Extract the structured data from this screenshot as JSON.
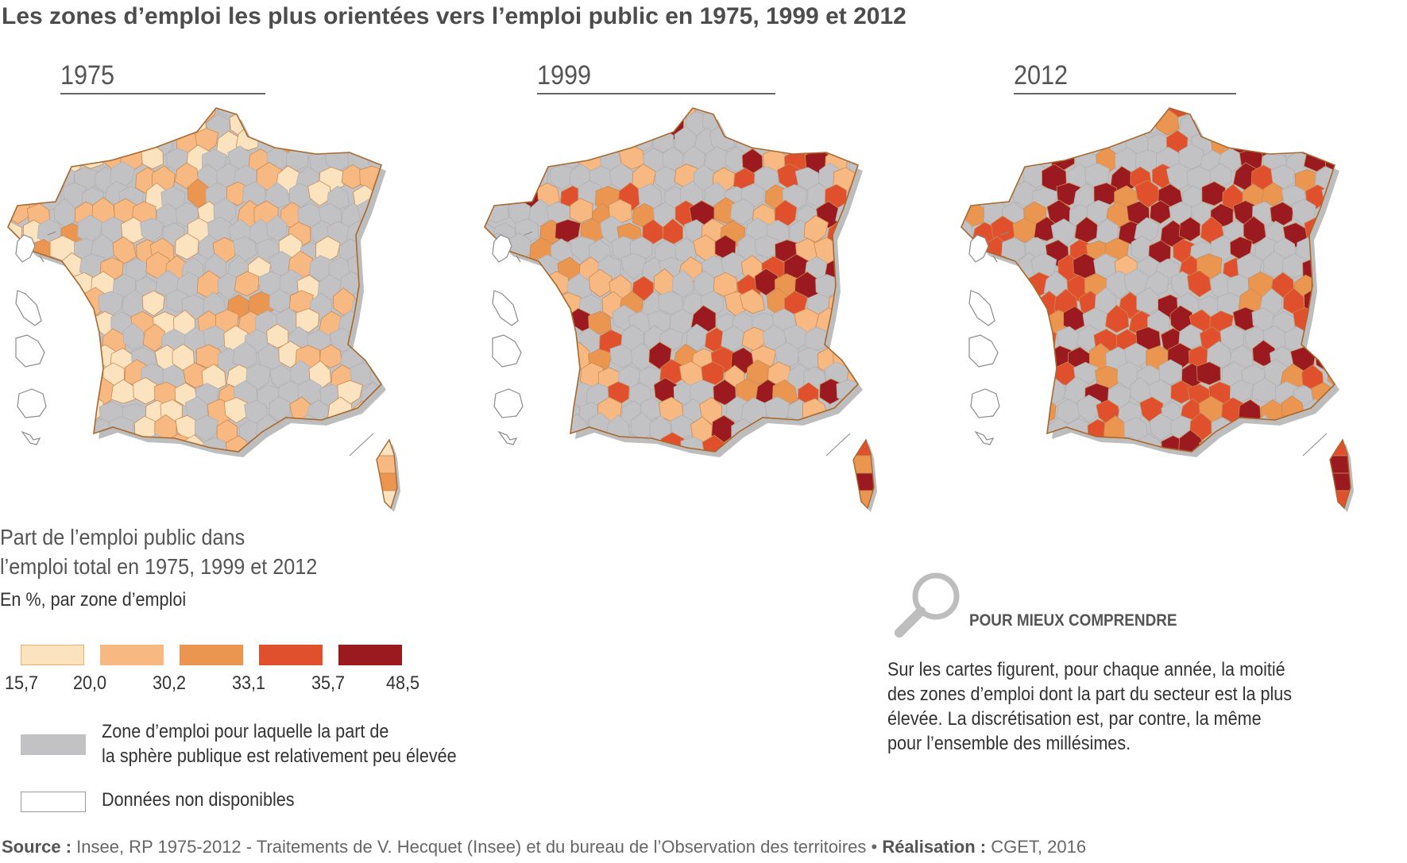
{
  "title": "Les zones d’emploi les plus orientées vers l’emploi public en 1975, 1999 et 2012",
  "colors": {
    "c1": "#fbe3c0",
    "c2": "#f7b981",
    "c3": "#eb9650",
    "c4": "#e0502c",
    "c5": "#9b1a1f",
    "gray": "#c2c2c4",
    "border": "#a8682e",
    "shadow": "#bdbdbd"
  },
  "maps": [
    {
      "year": "1975",
      "shares": {
        "c1": 0.46,
        "c2": 0.4,
        "c3": 0.04,
        "c4": 0.0,
        "c5": 0.0
      }
    },
    {
      "year": "1999",
      "shares": {
        "c1": 0.0,
        "c2": 0.38,
        "c3": 0.22,
        "c4": 0.16,
        "c5": 0.14
      }
    },
    {
      "year": "2012",
      "shares": {
        "c1": 0.0,
        "c2": 0.04,
        "c3": 0.16,
        "c4": 0.32,
        "c5": 0.38
      }
    }
  ],
  "legend": {
    "title_line1": "Part de l’emploi public dans",
    "title_line2": "l’emploi total en 1975, 1999 et 2012",
    "subtitle": "En %, par zone d’emploi",
    "breaks": [
      "15,7",
      "20,0",
      "30,2",
      "33,1",
      "35,7",
      "48,5"
    ],
    "gray_line1": "Zone d’emploi pour laquelle la part de",
    "gray_line2": "la sphère publique est relativement peu élevée",
    "na_label": "Données non disponibles"
  },
  "help": {
    "heading": "POUR MIEUX COMPRENDRE",
    "line1": "Sur les cartes figurent, pour chaque année, la moitié",
    "line2": "des zones d’emploi dont la part du secteur est la plus",
    "line3": "élevée. La discrétisation est, par contre, la même",
    "line4": "pour l’ensemble des millésimes."
  },
  "source": {
    "label": "Source :",
    "text": " Insee, RP 1975-2012 - Traitements de V. Hecquet (Insee) et du bureau de l’Observation des territoires • ",
    "credit_label": "Réalisation :",
    "credit_text": " CGET, 2016"
  }
}
